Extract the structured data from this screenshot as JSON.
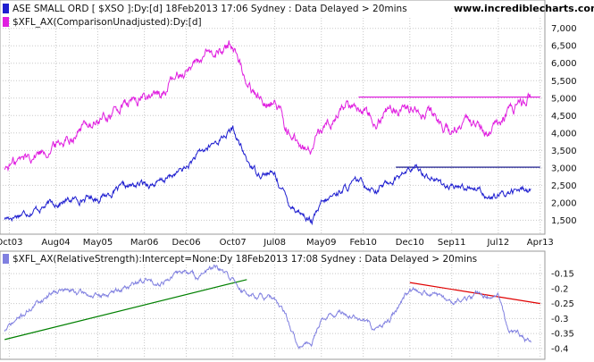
{
  "source_url": "www.incrediblecharts.com",
  "chart_data": [
    {
      "type": "line",
      "colors": {
        "main": "#1f1fd0",
        "comparison": "#e020e0",
        "main_ref": "#000080",
        "comp_ref": "#e020e0"
      },
      "series": [
        {
          "name": "ASE SMALL ORD [ $XSO ]:Dy:[d]  18Feb2013 17:06 Sydney : Data Delayed > 20mins",
          "x": [
            "2003-09",
            "2004-03",
            "2004-08",
            "2005-03",
            "2005-05",
            "2005-09",
            "2006-03",
            "2006-06",
            "2006-12",
            "2007-02",
            "2007-06",
            "2007-10",
            "2007-11",
            "2008-01",
            "2008-03",
            "2008-07",
            "2008-10",
            "2008-12",
            "2009-03",
            "2009-05",
            "2009-09",
            "2010-01",
            "2010-05",
            "2010-08",
            "2010-12",
            "2011-02",
            "2011-05",
            "2011-09",
            "2011-11",
            "2012-03",
            "2012-05",
            "2012-07",
            "2012-09",
            "2013-02"
          ],
          "values": [
            1550,
            1800,
            2000,
            2150,
            2150,
            2350,
            2550,
            2550,
            3000,
            3300,
            3700,
            4100,
            3800,
            3200,
            2900,
            2800,
            2000,
            1800,
            1450,
            1900,
            2350,
            2600,
            2400,
            2650,
            2950,
            2950,
            2700,
            2400,
            2450,
            2450,
            2150,
            2150,
            2300,
            2400
          ]
        },
        {
          "name": "$XFL_AX(ComparisonUnadjusted):Dy:[d]",
          "x": [
            "2003-09",
            "2004-03",
            "2004-08",
            "2005-03",
            "2005-05",
            "2005-09",
            "2006-03",
            "2006-06",
            "2006-12",
            "2007-02",
            "2007-06",
            "2007-10",
            "2007-11",
            "2008-01",
            "2008-03",
            "2008-07",
            "2008-10",
            "2008-12",
            "2009-03",
            "2009-05",
            "2009-09",
            "2010-01",
            "2010-05",
            "2010-08",
            "2010-12",
            "2011-02",
            "2011-05",
            "2011-09",
            "2011-11",
            "2012-03",
            "2012-05",
            "2012-07",
            "2012-09",
            "2013-02"
          ],
          "values": [
            3000,
            3400,
            3650,
            4300,
            4300,
            4650,
            5050,
            5050,
            5850,
            6100,
            6200,
            6600,
            6200,
            5500,
            5050,
            4900,
            4100,
            3700,
            3300,
            4000,
            4750,
            4800,
            4500,
            4700,
            4700,
            4800,
            4550,
            4000,
            4150,
            4250,
            4000,
            4200,
            4500,
            5050
          ]
        }
      ],
      "reference_lines": [
        {
          "series": 0,
          "y": 3020,
          "x_start": "2010-09",
          "x_end": "2013-04"
        },
        {
          "series": 1,
          "y": 5030,
          "x_start": "2010-01",
          "x_end": "2013-04"
        }
      ],
      "x_ticks": [
        "Oct03",
        "Aug04",
        "May05",
        "Mar06",
        "Dec06",
        "Oct07",
        "Jul08",
        "May09",
        "Feb10",
        "Dec10",
        "Sep11",
        "Jul12",
        "Apr13"
      ],
      "y_ticks": [
        "1,500",
        "2,000",
        "2,500",
        "3,000",
        "3,500",
        "4,000",
        "4,500",
        "5,000",
        "5,500",
        "6,000",
        "6,500",
        "7,000"
      ],
      "ylim": [
        1100,
        7300
      ],
      "grid": true,
      "legend_position": "top-left"
    },
    {
      "type": "line",
      "colors": {
        "main": "#8080e0",
        "trend_up": "#008000",
        "trend_down": "#e00000"
      },
      "series": [
        {
          "name": "$XFL_AX(RelativeStrength):Intercept=None:Dy  18Feb2013 17:08 Sydney : Data Delayed > 20mins",
          "x": [
            "2003-09",
            "2004-03",
            "2004-08",
            "2005-03",
            "2005-05",
            "2005-09",
            "2006-03",
            "2006-06",
            "2006-12",
            "2007-02",
            "2007-06",
            "2007-10",
            "2007-11",
            "2008-01",
            "2008-03",
            "2008-07",
            "2008-10",
            "2008-12",
            "2009-03",
            "2009-05",
            "2009-09",
            "2010-01",
            "2010-05",
            "2010-08",
            "2010-12",
            "2011-02",
            "2011-05",
            "2011-09",
            "2011-11",
            "2012-03",
            "2012-05",
            "2012-07",
            "2012-09",
            "2013-02"
          ],
          "values": [
            -0.34,
            -0.26,
            -0.2,
            -0.22,
            -0.23,
            -0.21,
            -0.17,
            -0.18,
            -0.14,
            -0.16,
            -0.13,
            -0.17,
            -0.19,
            -0.22,
            -0.22,
            -0.24,
            -0.31,
            -0.4,
            -0.38,
            -0.3,
            -0.28,
            -0.3,
            -0.34,
            -0.3,
            -0.2,
            -0.2,
            -0.22,
            -0.24,
            -0.24,
            -0.22,
            -0.23,
            -0.22,
            -0.33,
            -0.38
          ]
        }
      ],
      "trend_lines": [
        {
          "x_start": "2003-09",
          "y_start": -0.37,
          "x_end": "2008-01",
          "y_end": -0.17,
          "color": "#008000"
        },
        {
          "x_start": "2010-12",
          "y_start": -0.18,
          "x_end": "2013-04",
          "y_end": -0.25,
          "color": "#e00000"
        }
      ],
      "y_ticks": [
        "-0.15",
        "-0.2",
        "-0.25",
        "-0.3",
        "-0.35",
        "-0.4"
      ],
      "ylim": [
        -0.43,
        -0.12
      ],
      "grid": true,
      "legend_position": "top-left"
    }
  ]
}
